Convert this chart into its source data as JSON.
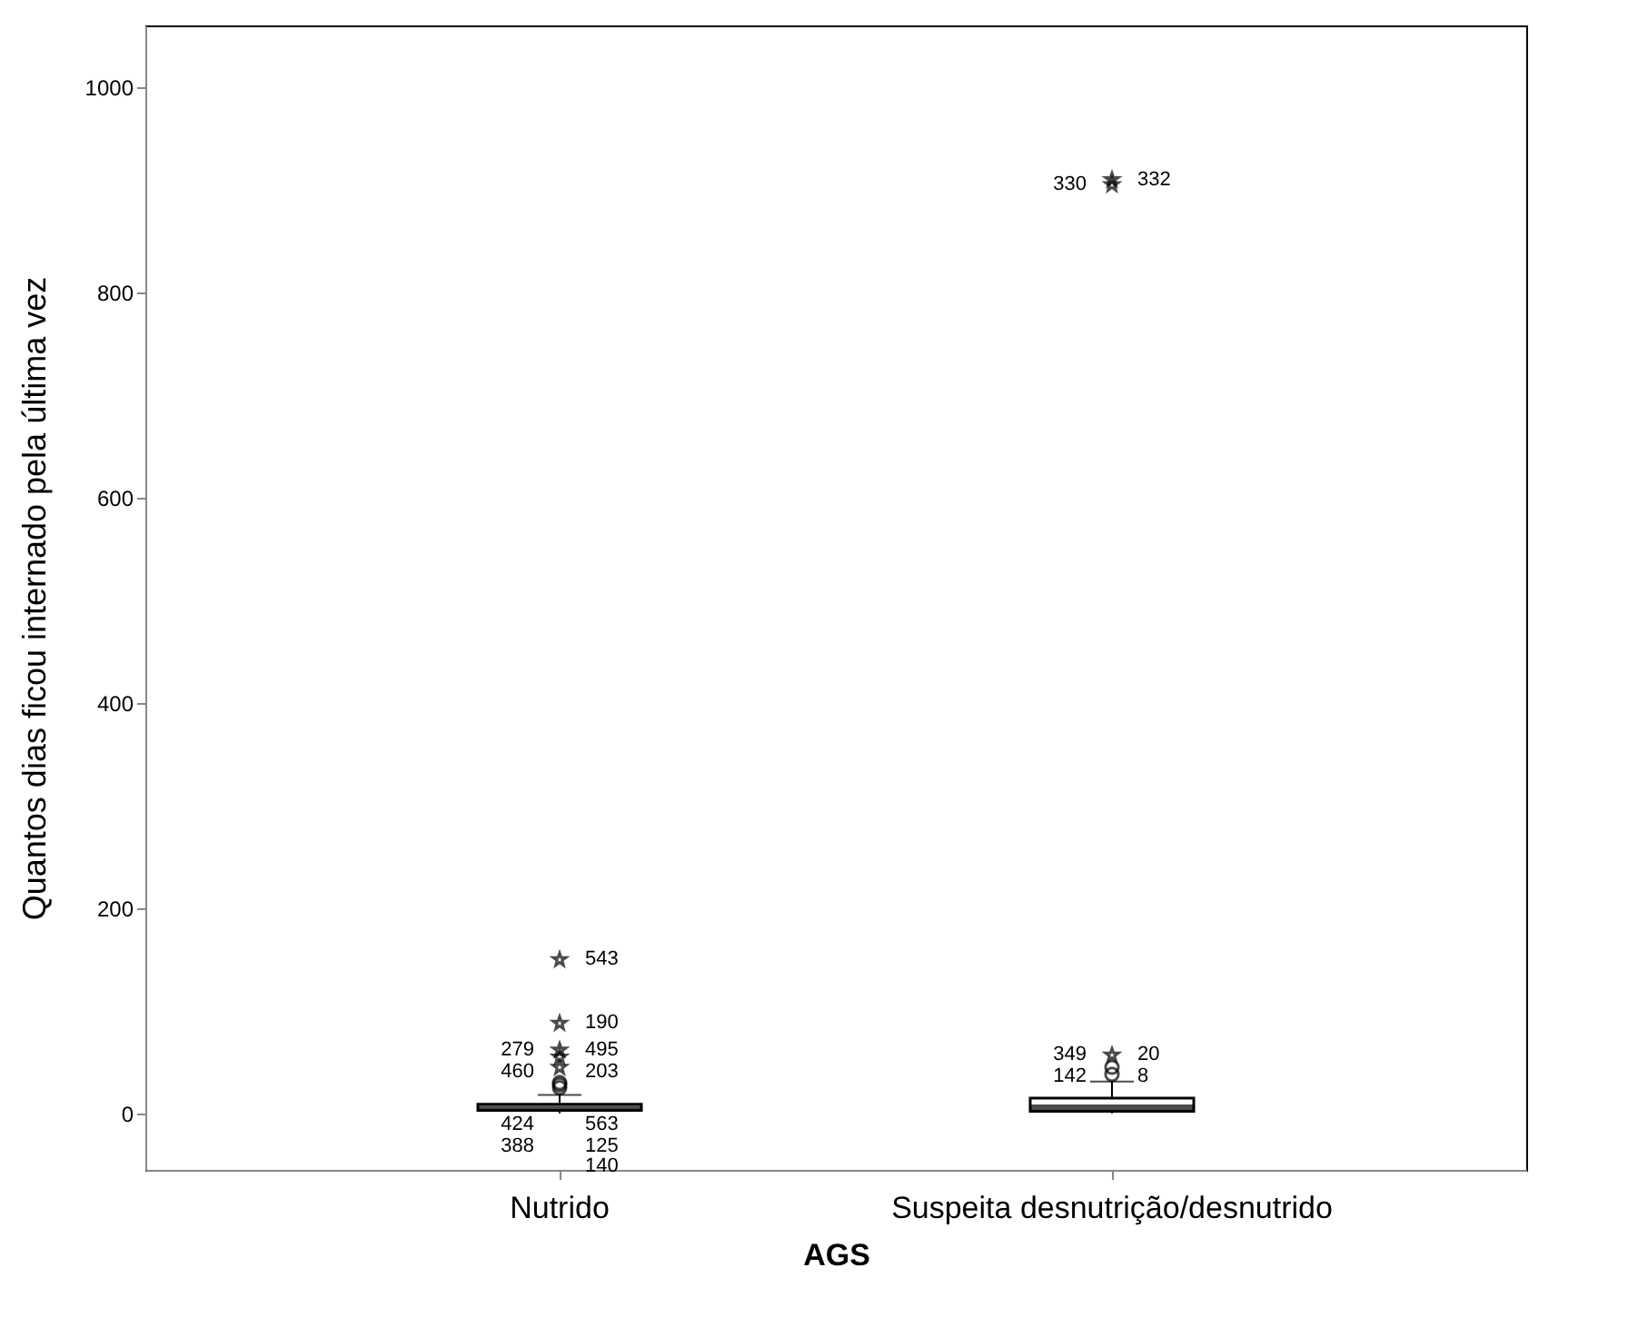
{
  "chart_data": {
    "type": "box",
    "xlabel": "AGS",
    "ylabel": "Quantos dias ficou internado pela última vez",
    "categories": [
      "Nutrido",
      "Suspeita desnutrição/desnutrido"
    ],
    "boxes": [
      {
        "low": 0,
        "q1": 3,
        "median": 5,
        "q3": 9,
        "high": 18
      },
      {
        "low": 0,
        "q1": 2,
        "median": 6,
        "q3": 15,
        "high": 31
      }
    ],
    "series": [
      {
        "type": "scatter",
        "marker": "circle",
        "color": "#000000",
        "x": [
          "Nutrido",
          "Nutrido",
          "Nutrido",
          "Suspeita desnutrição/desnutrido",
          "Suspeita desnutrição/desnutrido"
        ],
        "values": [
          25,
          28,
          30,
          38,
          45
        ]
      },
      {
        "type": "scatter",
        "marker": "star",
        "color": "#000000",
        "x": [
          "Nutrido",
          "Nutrido",
          "Nutrido",
          "Nutrido",
          "Nutrido",
          "Suspeita desnutrição/desnutrido",
          "Suspeita desnutrição/desnutrido",
          "Suspeita desnutrição/desnutrido"
        ],
        "values": [
          45,
          55,
          62,
          88,
          150,
          57,
          905,
          910
        ]
      }
    ],
    "ylim": [
      -55,
      1060
    ],
    "yticks": [
      0,
      200,
      400,
      600,
      800,
      1000
    ],
    "grid": false,
    "color": "#000000",
    "annotations": [
      {
        "text": "543",
        "x": "Nutrido",
        "y": 150
      },
      {
        "text": "190",
        "x": "Nutrido",
        "y": 88
      },
      {
        "text": "495",
        "x": "Nutrido",
        "y": 62
      },
      {
        "text": "279",
        "x": "Nutrido",
        "y": 62
      },
      {
        "text": "203",
        "x": "Nutrido",
        "y": 55
      },
      {
        "text": "460",
        "x": "Nutrido",
        "y": 55
      },
      {
        "text": "563",
        "x": "Nutrido",
        "y": 30
      },
      {
        "text": "424",
        "x": "Nutrido",
        "y": 28
      },
      {
        "text": "125",
        "x": "Nutrido",
        "y": 25
      },
      {
        "text": "388",
        "x": "Nutrido",
        "y": 0
      },
      {
        "text": "140",
        "x": "Nutrido",
        "y": 0
      },
      {
        "text": "332",
        "x": "Suspeita desnutrição/desnutrido",
        "y": 910
      },
      {
        "text": "330",
        "x": "Suspeita desnutrição/desnutrido",
        "y": 905
      },
      {
        "text": "20",
        "x": "Suspeita desnutrição/desnutrido",
        "y": 57
      },
      {
        "text": "349",
        "x": "Suspeita desnutrição/desnutrido",
        "y": 57
      },
      {
        "text": "8",
        "x": "Suspeita desnutrição/desnutrido",
        "y": 45
      },
      {
        "text": "142",
        "x": "Suspeita desnutrição/desnutrido",
        "y": 38
      }
    ]
  }
}
